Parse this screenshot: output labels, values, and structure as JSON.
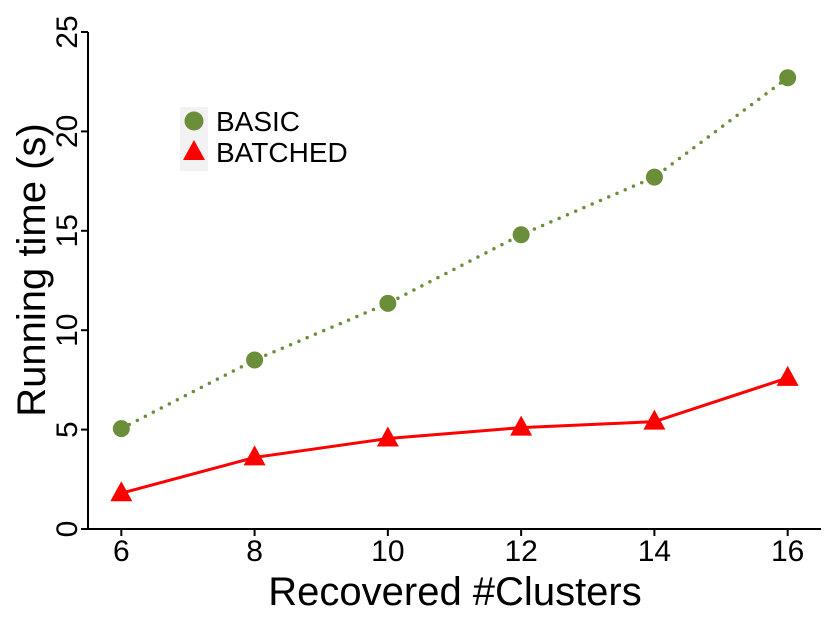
{
  "chart_data": {
    "type": "line",
    "title": "",
    "xlabel": "Recovered #Clusters",
    "ylabel": "Running time (s)",
    "x": [
      6,
      8,
      10,
      12,
      14,
      16
    ],
    "xlim": [
      5.5,
      16.5
    ],
    "ylim": [
      0,
      25
    ],
    "xticks": [
      "6",
      "8",
      "10",
      "12",
      "14",
      "16"
    ],
    "yticks": [
      "0",
      "5",
      "10",
      "15",
      "20",
      "25"
    ],
    "grid": false,
    "legend_position": "top-left",
    "series": [
      {
        "name": "BASIC",
        "values": [
          5.05,
          8.5,
          11.35,
          14.8,
          17.7,
          22.7
        ],
        "color": "#6b8e3a",
        "line_style": "dotted",
        "marker": "circle"
      },
      {
        "name": "BATCHED",
        "values": [
          1.8,
          3.6,
          4.55,
          5.1,
          5.4,
          7.6
        ],
        "color": "#ff0000",
        "line_style": "solid",
        "marker": "triangle"
      }
    ]
  }
}
